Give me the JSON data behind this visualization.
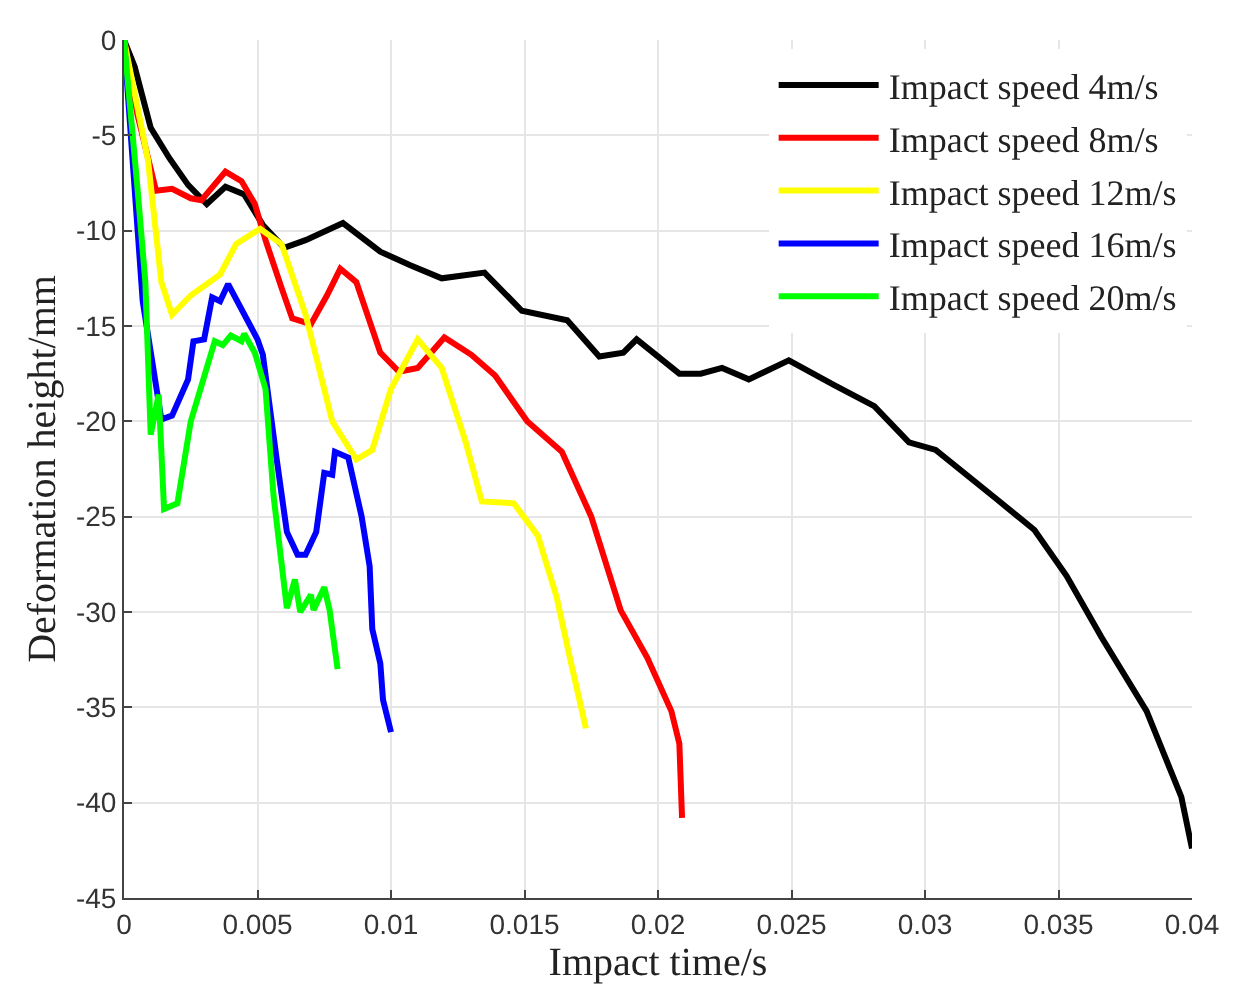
{
  "chart_data": {
    "type": "line",
    "xlabel": "Impact time/s",
    "ylabel": "Deformation height/mm",
    "xlim": [
      0,
      0.04
    ],
    "ylim": [
      -45,
      0
    ],
    "xticks": [
      0,
      0.005,
      0.01,
      0.015,
      0.02,
      0.025,
      0.03,
      0.035,
      0.04
    ],
    "yticks": [
      -45,
      -40,
      -35,
      -30,
      -25,
      -20,
      -15,
      -10,
      -5,
      0
    ],
    "grid": true,
    "legend": "top right",
    "line_style": "solid",
    "marker": "none",
    "series": [
      {
        "name": "Impact speed 4m/s",
        "color": "#000000",
        "x": [
          0,
          0.0004,
          0.001,
          0.0017,
          0.0024,
          0.0031,
          0.0038,
          0.0045,
          0.0052,
          0.006,
          0.0068,
          0.0082,
          0.0096,
          0.0107,
          0.0119,
          0.0135,
          0.0149,
          0.0166,
          0.0178,
          0.0187,
          0.0192,
          0.0208,
          0.0216,
          0.0224,
          0.0234,
          0.0249,
          0.0266,
          0.0281,
          0.0294,
          0.0304,
          0.0327,
          0.0341,
          0.0353,
          0.0366,
          0.0383,
          0.0396,
          0.04
        ],
        "values": [
          0,
          -1.4,
          -4.6,
          -6.2,
          -7.6,
          -8.6,
          -7.7,
          -8.1,
          -9.7,
          -10.9,
          -10.5,
          -9.6,
          -11.1,
          -11.8,
          -12.5,
          -12.2,
          -14.2,
          -14.7,
          -16.6,
          -16.4,
          -15.7,
          -17.5,
          -17.5,
          -17.2,
          -17.8,
          -16.8,
          -18.1,
          -19.2,
          -21.1,
          -21.5,
          -24.1,
          -25.7,
          -28.1,
          -31.3,
          -35.2,
          -39.7,
          -42.4
        ]
      },
      {
        "name": "Impact speed 8m/s",
        "color": "#ff0000",
        "x": [
          0,
          0.0005,
          0.0012,
          0.0018,
          0.0025,
          0.0029,
          0.0038,
          0.0044,
          0.0049,
          0.0053,
          0.0059,
          0.0063,
          0.007,
          0.0076,
          0.0081,
          0.0087,
          0.0096,
          0.0103,
          0.011,
          0.012,
          0.013,
          0.0139,
          0.0151,
          0.0164,
          0.0175,
          0.0186,
          0.0196,
          0.0205,
          0.0208,
          0.0209
        ],
        "values": [
          0,
          -3.9,
          -7.9,
          -7.8,
          -8.3,
          -8.4,
          -6.9,
          -7.4,
          -8.6,
          -10.5,
          -13,
          -14.6,
          -14.9,
          -13.4,
          -12,
          -12.7,
          -16.4,
          -17.4,
          -17.2,
          -15.6,
          -16.5,
          -17.6,
          -20,
          -21.6,
          -25,
          -29.9,
          -32.4,
          -35.2,
          -36.9,
          -40.8
        ]
      },
      {
        "name": "Impact speed 12m/s",
        "color": "#ffff00",
        "x": [
          0,
          0.0009,
          0.0014,
          0.0018,
          0.0025,
          0.0036,
          0.0042,
          0.0051,
          0.0059,
          0.0068,
          0.0078,
          0.0087,
          0.0093,
          0.01,
          0.011,
          0.0119,
          0.0128,
          0.0134,
          0.0146,
          0.0155,
          0.0162,
          0.0167,
          0.0173
        ],
        "values": [
          0,
          -6.3,
          -12.7,
          -14.4,
          -13.4,
          -12.3,
          -10.7,
          -9.9,
          -10.7,
          -14.4,
          -20,
          -22,
          -21.5,
          -18.3,
          -15.7,
          -17.2,
          -21.1,
          -24.2,
          -24.3,
          -26,
          -29.2,
          -32.4,
          -36.1
        ]
      },
      {
        "name": "Impact speed 16m/s",
        "color": "#0000ff",
        "x": [
          0,
          0.0007,
          0.0014,
          0.0018,
          0.0024,
          0.0026,
          0.003,
          0.0033,
          0.0036,
          0.0039,
          0.005,
          0.0052,
          0.0057,
          0.0061,
          0.0065,
          0.0068,
          0.0072,
          0.0075,
          0.0078,
          0.0079,
          0.0084,
          0.0089,
          0.0092,
          0.0093,
          0.0096,
          0.0097,
          0.01
        ],
        "values": [
          0,
          -13.7,
          -19.9,
          -19.7,
          -17.8,
          -15.8,
          -15.7,
          -13.5,
          -13.7,
          -12.8,
          -15.7,
          -16.5,
          -21.8,
          -25.8,
          -27,
          -27,
          -25.8,
          -22.7,
          -22.8,
          -21.6,
          -21.9,
          -25,
          -27.6,
          -30.9,
          -32.7,
          -34.6,
          -36.3
        ]
      },
      {
        "name": "Impact speed 20m/s",
        "color": "#00ff00",
        "x": [
          0,
          0.0005,
          0.0008,
          0.001,
          0.0013,
          0.0015,
          0.002,
          0.0025,
          0.0031,
          0.0034,
          0.0037,
          0.004,
          0.0044,
          0.0045,
          0.0049,
          0.0053,
          0.0056,
          0.0061,
          0.0064,
          0.0066,
          0.007,
          0.0071,
          0.0075,
          0.0077,
          0.008
        ],
        "values": [
          0,
          -7.7,
          -12.7,
          -20.7,
          -18.6,
          -24.6,
          -24.3,
          -20,
          -17.2,
          -15.8,
          -16,
          -15.5,
          -15.8,
          -15.4,
          -16.4,
          -18.3,
          -23.9,
          -29.8,
          -28.3,
          -30,
          -29.1,
          -29.9,
          -28.7,
          -29.9,
          -33
        ]
      }
    ]
  }
}
